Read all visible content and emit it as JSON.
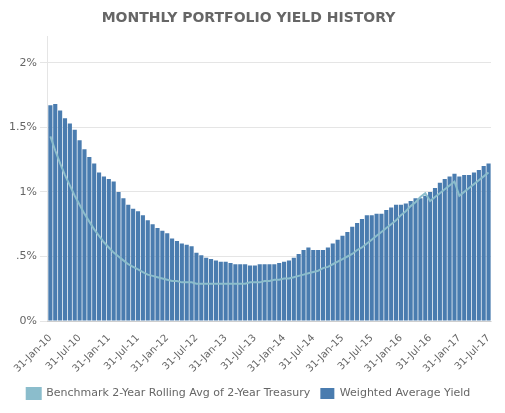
{
  "chart_data": {
    "type": "bar",
    "title": "MONTHLY PORTFOLIO YIELD HISTORY",
    "categories": [
      "31-Jan-10",
      null,
      null,
      null,
      null,
      null,
      "31-Jul-10",
      null,
      null,
      null,
      null,
      null,
      "31-Jan-11",
      null,
      null,
      null,
      null,
      null,
      "31-Jul-11",
      null,
      null,
      null,
      null,
      null,
      "31-Jan-12",
      null,
      null,
      null,
      null,
      null,
      "31-Jul-12",
      null,
      null,
      null,
      null,
      null,
      "31-Jan-13",
      null,
      null,
      null,
      null,
      null,
      "31-Jul-13",
      null,
      null,
      null,
      null,
      null,
      "31-Jan-14",
      null,
      null,
      null,
      null,
      null,
      "31-Jul-14",
      null,
      null,
      null,
      null,
      null,
      "31-Jan-15",
      null,
      null,
      null,
      null,
      null,
      "31-Jul-15",
      null,
      null,
      null,
      null,
      null,
      "31-Jan-16",
      null,
      null,
      null,
      null,
      null,
      "31-Jul-16",
      null,
      null,
      null,
      null,
      null,
      "31-Jan-17",
      null,
      null,
      null,
      null,
      null,
      "31-Jul-17"
    ],
    "series": [
      {
        "name": "Weighted Average Yield",
        "type": "bar",
        "color": "#4A7CAF",
        "values": [
          0.0167,
          0.0168,
          0.0163,
          0.0157,
          0.0153,
          0.0148,
          0.014,
          0.0133,
          0.0127,
          0.0122,
          0.0115,
          0.0112,
          0.011,
          0.0108,
          0.01,
          0.0095,
          0.009,
          0.0087,
          0.0085,
          0.0082,
          0.0078,
          0.0075,
          0.0072,
          0.007,
          0.0068,
          0.0064,
          0.0062,
          0.006,
          0.0059,
          0.0058,
          0.0053,
          0.0051,
          0.0049,
          0.0048,
          0.0047,
          0.0046,
          0.0046,
          0.0045,
          0.0044,
          0.0044,
          0.0044,
          0.0043,
          0.0043,
          0.0044,
          0.0044,
          0.0044,
          0.0044,
          0.0045,
          0.0046,
          0.0047,
          0.0049,
          0.0052,
          0.0055,
          0.0057,
          0.0055,
          0.0055,
          0.0055,
          0.0057,
          0.006,
          0.0063,
          0.0066,
          0.0069,
          0.0073,
          0.0076,
          0.0079,
          0.0082,
          0.0082,
          0.0083,
          0.0083,
          0.0086,
          0.0088,
          0.009,
          0.009,
          0.0091,
          0.0093,
          0.0095,
          0.0095,
          0.0097,
          0.01,
          0.0103,
          0.0107,
          0.011,
          0.0112,
          0.0114,
          0.0112,
          0.0113,
          0.0113,
          0.0115,
          0.0117,
          0.012,
          0.0122
        ]
      },
      {
        "name": "Benchmark 2-Year Rolling Avg of 2-Year Treasury",
        "type": "line",
        "color": "#8BBDCC",
        "values": [
          0.0143,
          0.0132,
          0.0122,
          0.0113,
          0.0105,
          0.0097,
          0.009,
          0.0083,
          0.0077,
          0.0071,
          0.0066,
          0.0061,
          0.0057,
          0.0053,
          0.005,
          0.0047,
          0.0044,
          0.0042,
          0.004,
          0.0038,
          0.0036,
          0.0035,
          0.0034,
          0.0033,
          0.0032,
          0.0031,
          0.0031,
          0.003,
          0.003,
          0.003,
          0.0029,
          0.0029,
          0.0029,
          0.0029,
          0.0029,
          0.0029,
          0.0029,
          0.0029,
          0.0029,
          0.0029,
          0.0029,
          0.003,
          0.003,
          0.003,
          0.0031,
          0.0031,
          0.0032,
          0.0032,
          0.0033,
          0.0033,
          0.0034,
          0.0035,
          0.0036,
          0.0037,
          0.0038,
          0.0039,
          0.0041,
          0.0042,
          0.0044,
          0.0046,
          0.0048,
          0.005,
          0.0052,
          0.0055,
          0.0057,
          0.006,
          0.0063,
          0.0066,
          0.0069,
          0.0072,
          0.0075,
          0.0078,
          0.0082,
          0.0085,
          0.0089,
          0.0092,
          0.0096,
          0.0099,
          0.0093,
          0.0096,
          0.0099,
          0.0102,
          0.0105,
          0.0108,
          0.0097,
          0.01,
          0.0103,
          0.0106,
          0.0109,
          0.0112,
          0.0115
        ]
      }
    ],
    "ylim": [
      0,
      0.022
    ],
    "yticks": [
      {
        "value": 0,
        "label": "0%"
      },
      {
        "value": 0.005,
        "label": ".5%"
      },
      {
        "value": 0.01,
        "label": "1%"
      },
      {
        "value": 0.015,
        "label": "1.5%"
      },
      {
        "value": 0.02,
        "label": "2%"
      }
    ],
    "grid": "y",
    "legend": "bottom"
  }
}
